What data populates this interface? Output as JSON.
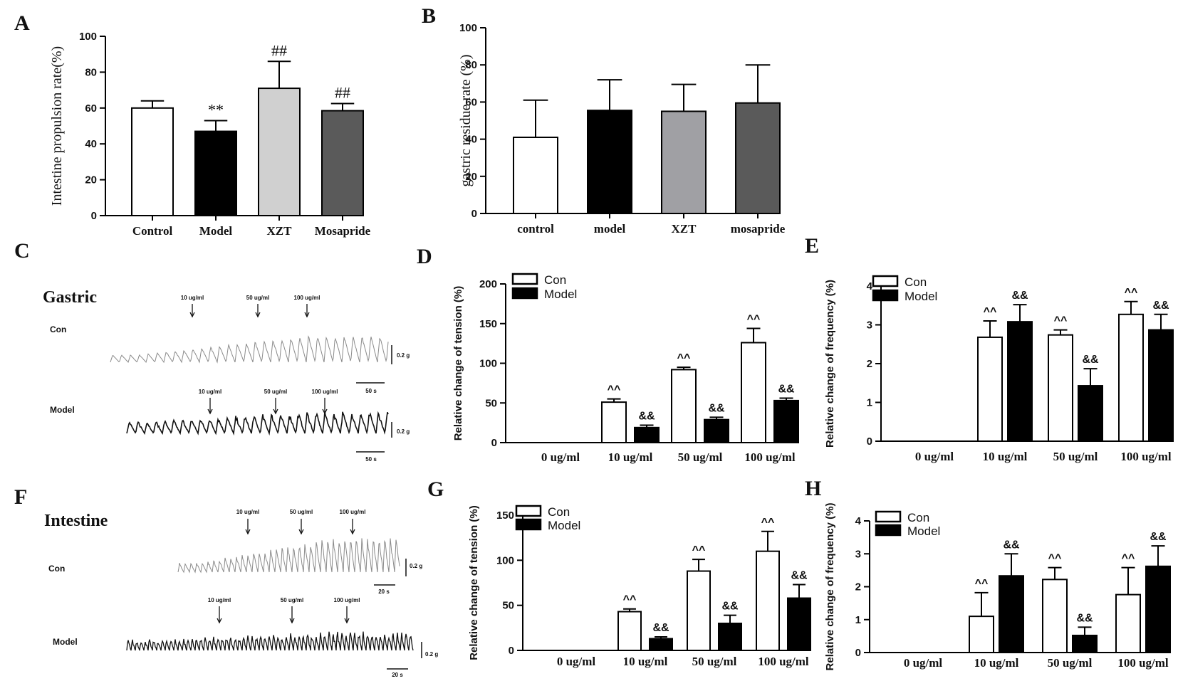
{
  "chart_data": [
    {
      "id": "A",
      "letter": "A",
      "type": "bar",
      "ylabel": "Intestine propulsion rate(%)",
      "ylim": [
        0,
        100
      ],
      "yticks": [
        0,
        20,
        40,
        60,
        80,
        100
      ],
      "categories": [
        "Control",
        "Model",
        "XZT",
        "Mosapride"
      ],
      "values": [
        60,
        47,
        71,
        58.5
      ],
      "errors": [
        4,
        6,
        15,
        4
      ],
      "fills": [
        "#ffffff",
        "#000000",
        "#d0d0d0",
        "#5a5a5a"
      ],
      "annotations": [
        "",
        "**",
        "##",
        "##"
      ]
    },
    {
      "id": "B",
      "letter": "B",
      "type": "bar",
      "ylabel": "gastric residue rate (%)",
      "ylim": [
        0,
        100
      ],
      "yticks": [
        0,
        20,
        40,
        60,
        80,
        100
      ],
      "categories": [
        "control",
        "model",
        "XZT",
        "mosapride"
      ],
      "values": [
        41,
        55.5,
        55,
        59.5
      ],
      "errors": [
        20,
        16.5,
        14.5,
        20.5
      ],
      "fills": [
        "#ffffff",
        "#000000",
        "#a0a0a4",
        "#5a5a5a"
      ],
      "annotations": [
        "",
        "",
        "",
        ""
      ]
    },
    {
      "id": "D",
      "letter": "D",
      "type": "bar",
      "ylabel": "Relative change of tension (%)",
      "ylim": [
        0,
        200
      ],
      "yticks": [
        0,
        50,
        100,
        150,
        200
      ],
      "categories": [
        "0 ug/ml",
        "10 ug/ml",
        "50 ug/ml",
        "100 ug/ml"
      ],
      "series": [
        {
          "name": "Con",
          "fill": "#ffffff",
          "values": [
            0,
            51,
            92,
            126
          ],
          "errors": [
            0,
            4,
            3,
            18
          ],
          "annotations": [
            "",
            "^^",
            "^^",
            "^^"
          ]
        },
        {
          "name": "Model",
          "fill": "#000000",
          "values": [
            0,
            19,
            29,
            53
          ],
          "errors": [
            0,
            3,
            3,
            3
          ],
          "annotations": [
            "",
            "&&",
            "&&",
            "&&"
          ]
        }
      ]
    },
    {
      "id": "E",
      "letter": "E",
      "type": "bar",
      "ylabel": "Relative change of frequency (%)",
      "ylim": [
        0,
        4
      ],
      "yticks": [
        0,
        1,
        2,
        3,
        4
      ],
      "categories": [
        "0 ug/ml",
        "10 ug/ml",
        "50 ug/ml",
        "100 ug/ml"
      ],
      "series": [
        {
          "name": "Con",
          "fill": "#ffffff",
          "values": [
            0,
            2.68,
            2.74,
            3.27
          ],
          "errors": [
            0,
            0.42,
            0.13,
            0.33
          ],
          "annotations": [
            "",
            "^^",
            "^^",
            "^^"
          ]
        },
        {
          "name": "Model",
          "fill": "#000000",
          "values": [
            0,
            3.08,
            1.43,
            2.87
          ],
          "errors": [
            0,
            0.44,
            0.44,
            0.4
          ],
          "annotations": [
            "",
            "&&",
            "&&",
            "&&"
          ]
        }
      ]
    },
    {
      "id": "G",
      "letter": "G",
      "type": "bar",
      "ylabel": "Relative change of tension (%)",
      "ylim": [
        0,
        150
      ],
      "yticks": [
        0,
        50,
        100,
        150
      ],
      "categories": [
        "0 ug/ml",
        "10 ug/ml",
        "50 ug/ml",
        "100 ug/ml"
      ],
      "series": [
        {
          "name": "Con",
          "fill": "#ffffff",
          "values": [
            0,
            43,
            88,
            110
          ],
          "errors": [
            0,
            3,
            13,
            22
          ],
          "annotations": [
            "",
            "^^",
            "^^",
            "^^"
          ]
        },
        {
          "name": "Model",
          "fill": "#000000",
          "values": [
            0,
            13,
            30,
            58
          ],
          "errors": [
            0,
            2,
            9,
            15
          ],
          "annotations": [
            "",
            "&&",
            "&&",
            "&&"
          ]
        }
      ]
    },
    {
      "id": "H",
      "letter": "H",
      "type": "bar",
      "ylabel": "Relative change of frequency (%)",
      "ylim": [
        0,
        4
      ],
      "yticks": [
        0,
        1,
        2,
        3,
        4
      ],
      "categories": [
        "0 ug/ml",
        "10 ug/ml",
        "50 ug/ml",
        "100 ug/ml"
      ],
      "series": [
        {
          "name": "Con",
          "fill": "#ffffff",
          "values": [
            0,
            1.1,
            2.22,
            1.76
          ],
          "errors": [
            0,
            0.72,
            0.36,
            0.82
          ],
          "annotations": [
            "",
            "^^",
            "^^",
            "^^"
          ]
        },
        {
          "name": "Model",
          "fill": "#000000",
          "values": [
            0,
            2.33,
            0.52,
            2.62
          ],
          "errors": [
            0,
            0.67,
            0.25,
            0.62
          ],
          "annotations": [
            "",
            "&&",
            "&&",
            "&&"
          ]
        }
      ]
    }
  ],
  "traces": [
    {
      "id": "C",
      "letter": "C",
      "title": "Gastric",
      "rows": [
        {
          "label": "Con",
          "markers": [
            "10 ug/ml",
            "50 ug/ml",
            "100 ug/ml"
          ],
          "scale_amp": "0.2 g",
          "scale_time": "50 s"
        },
        {
          "label": "Model",
          "markers": [
            "10 ug/ml",
            "50 ug/ml",
            "100 ug/ml"
          ],
          "scale_amp": "0.2 g",
          "scale_time": "50 s"
        }
      ]
    },
    {
      "id": "F",
      "letter": "F",
      "title": "Intestine",
      "rows": [
        {
          "label": "Con",
          "markers": [
            "10 ug/ml",
            "50 ug/ml",
            "100 ug/ml"
          ],
          "scale_amp": "0.2 g",
          "scale_time": "20 s"
        },
        {
          "label": "Model",
          "markers": [
            "10 ug/ml",
            "50 ug/ml",
            "100 ug/ml"
          ],
          "scale_amp": "0.2 g",
          "scale_time": "20 s"
        }
      ]
    }
  ]
}
